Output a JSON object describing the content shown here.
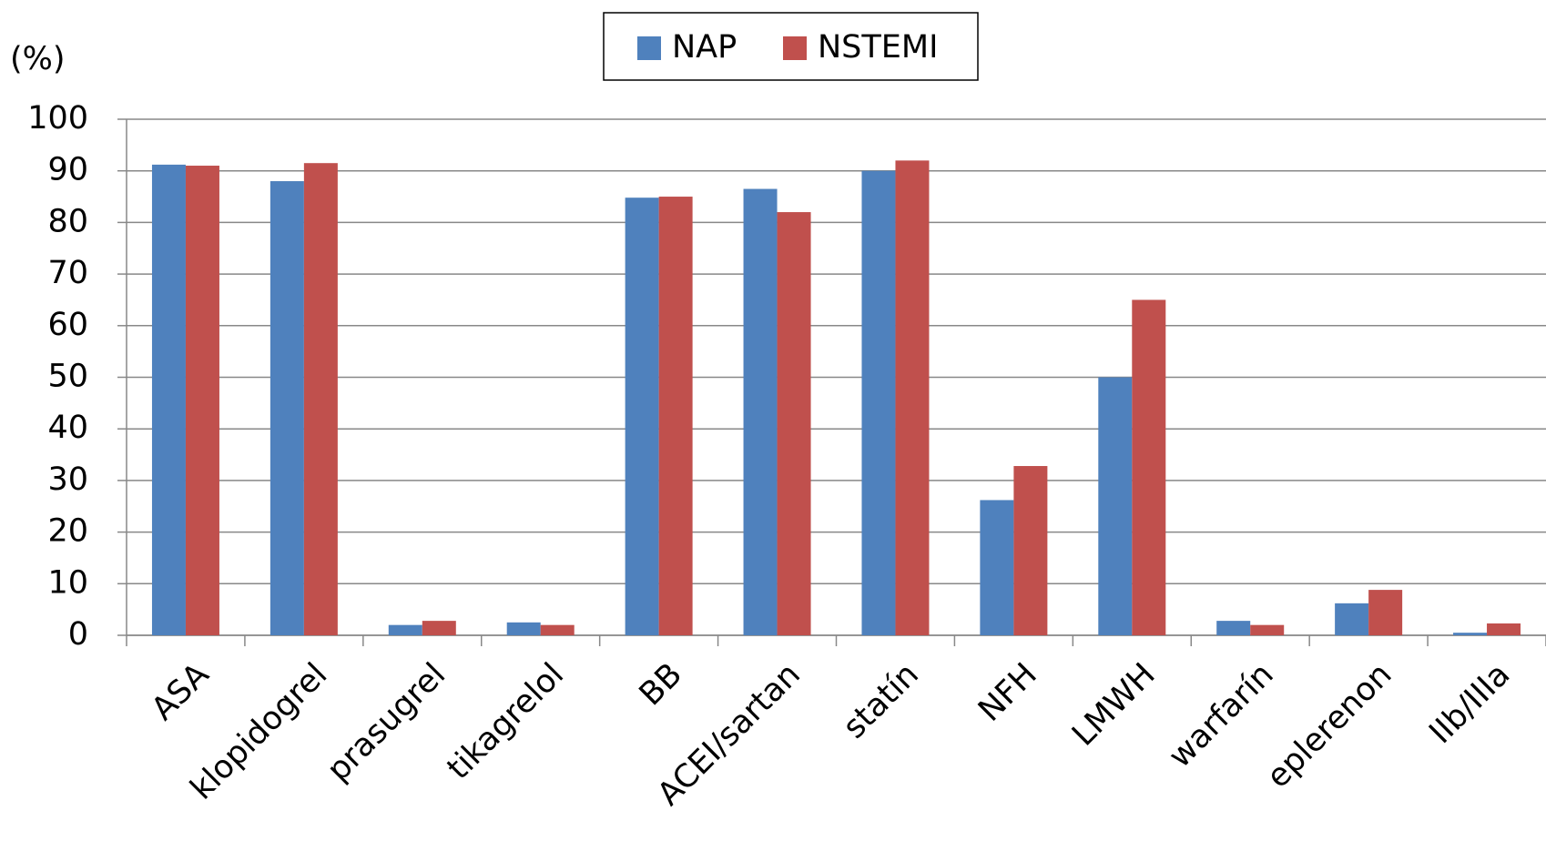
{
  "chart_data": {
    "type": "bar",
    "y_label": "(%)",
    "categories": [
      "ASA",
      "klopidogrel",
      "prasugrel",
      "tikagrelol",
      "BB",
      "ACEI/sartan",
      "statín",
      "NFH",
      "LMWH",
      "warfarín",
      "eplerenon",
      "IIb/IIIa"
    ],
    "series": [
      {
        "name": "NAP",
        "color": "#4f81bd",
        "values": [
          91.2,
          88,
          2,
          2.5,
          84.8,
          86.5,
          90,
          26.2,
          50,
          2.8,
          6.2,
          0.5
        ]
      },
      {
        "name": "NSTEMI",
        "color": "#c0504d",
        "values": [
          91,
          91.5,
          2.8,
          2,
          85,
          82,
          92,
          32.8,
          65,
          2,
          8.8,
          2.3
        ]
      }
    ],
    "ylim": [
      0,
      100
    ],
    "yticks": [
      0,
      10,
      20,
      30,
      40,
      50,
      60,
      70,
      80,
      90,
      100
    ],
    "grid": true,
    "legend": "top"
  }
}
